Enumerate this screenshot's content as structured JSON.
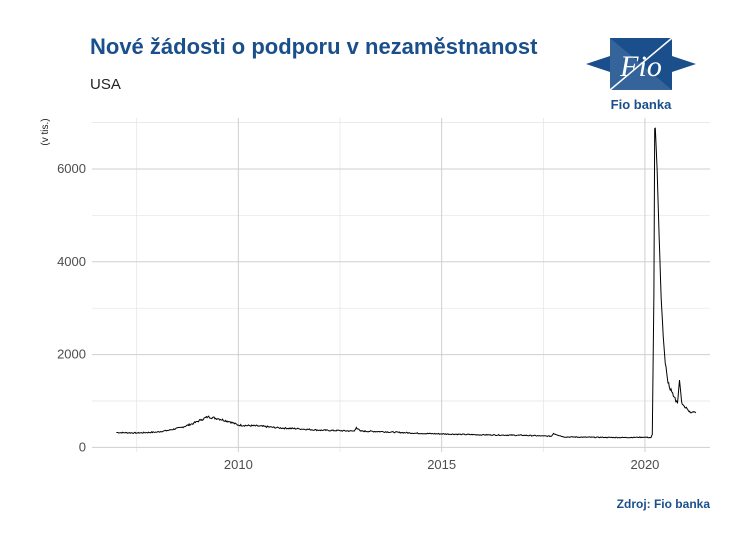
{
  "header": {
    "title": "Nové žádosti o podporu v nezaměstnanost",
    "subtitle": "USA",
    "source": "Zdroj: Fio banka"
  },
  "logo": {
    "mark_text": "Fio",
    "name": "Fio banka",
    "color": "#1a4f8c"
  },
  "chart_data": {
    "type": "line",
    "title": "Nové žádosti o podporu v nezaměstnanost",
    "subtitle": "USA",
    "xlabel": "",
    "ylabel": "(v tis.)",
    "xlim": [
      2006.4,
      2021.6
    ],
    "ylim": [
      -100,
      7100
    ],
    "xticks": [
      2010,
      2015,
      2020
    ],
    "yticks": [
      0,
      2000,
      4000,
      6000
    ],
    "xtick_labels": [
      "2010",
      "2015",
      "2020"
    ],
    "ytick_labels": [
      "0",
      "2000",
      "4000",
      "6000"
    ],
    "grid": true,
    "legend": "none",
    "line_color": "#000000",
    "series": [
      {
        "x": [
          2007.0,
          2007.5,
          2008.0,
          2008.3,
          2008.6,
          2008.9,
          2009.1,
          2009.25,
          2009.5,
          2009.8,
          2010.0,
          2010.5,
          2011.0,
          2011.5,
          2012.0,
          2012.5,
          2012.85,
          2012.9,
          2013.0,
          2013.5,
          2014.0,
          2014.5,
          2015.0,
          2015.5,
          2016.0,
          2016.5,
          2017.0,
          2017.5,
          2017.7,
          2017.75,
          2018.0,
          2018.5,
          2019.0,
          2019.5,
          2020.0,
          2020.15,
          2020.18,
          2020.22,
          2020.24,
          2020.27,
          2020.3,
          2020.35,
          2020.4,
          2020.45,
          2020.5,
          2020.55,
          2020.6,
          2020.7,
          2020.8,
          2020.85,
          2020.9,
          2020.95,
          2021.0,
          2021.05,
          2021.1,
          2021.15,
          2021.2,
          2021.25
        ],
        "y": [
          320,
          310,
          330,
          370,
          430,
          520,
          600,
          660,
          620,
          550,
          480,
          460,
          420,
          400,
          370,
          360,
          350,
          430,
          350,
          340,
          320,
          300,
          290,
          280,
          270,
          265,
          260,
          245,
          240,
          300,
          225,
          220,
          215,
          212,
          220,
          210,
          280,
          3300,
          6870,
          6600,
          6000,
          4500,
          3200,
          2400,
          1800,
          1500,
          1300,
          1100,
          950,
          1450,
          1000,
          900,
          850,
          820,
          780,
          750,
          760,
          740
        ]
      }
    ]
  }
}
